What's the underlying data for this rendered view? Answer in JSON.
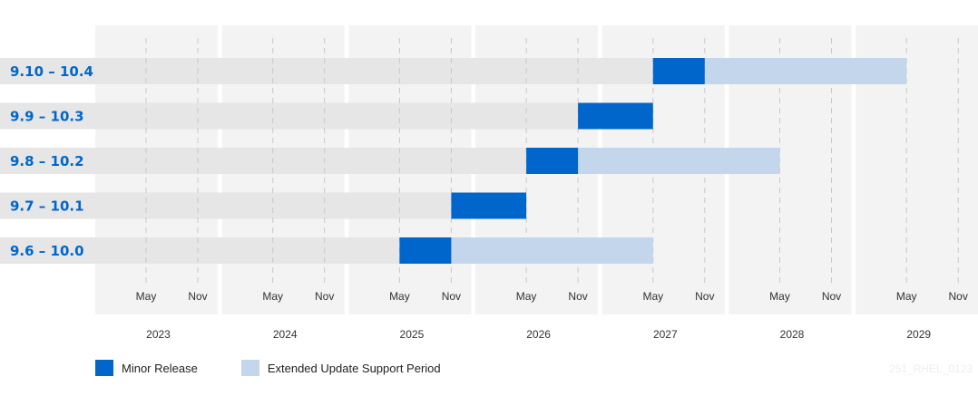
{
  "chart_data": {
    "type": "gantt",
    "years": [
      "2023",
      "2024",
      "2025",
      "2026",
      "2027",
      "2028",
      "2029"
    ],
    "month_ticks": [
      "May",
      "Nov"
    ],
    "series": [
      {
        "name": "Minor Release",
        "color": "#0066cc"
      },
      {
        "name": "Extended Update Support Period",
        "color": "#c3d6ec"
      }
    ],
    "rows": [
      {
        "label": "9.10 – 10.4",
        "minor_start": "2027-05",
        "minor_end": "2027-11",
        "eus_end": "2029-05"
      },
      {
        "label": "9.9 – 10.3",
        "minor_start": "2026-11",
        "minor_end": "2027-05",
        "eus_end": null
      },
      {
        "label": "9.8 – 10.2",
        "minor_start": "2026-05",
        "minor_end": "2026-11",
        "eus_end": "2028-05"
      },
      {
        "label": "9.7 – 10.1",
        "minor_start": "2025-11",
        "minor_end": "2026-05",
        "eus_end": null
      },
      {
        "label": "9.6 – 10.0",
        "minor_start": "2025-05",
        "minor_end": "2025-11",
        "eus_end": "2027-05"
      }
    ]
  },
  "legend": {
    "minor_release": "Minor Release",
    "eus_period": "Extended Update Support Period"
  },
  "watermark": "251_RHEL_0123"
}
